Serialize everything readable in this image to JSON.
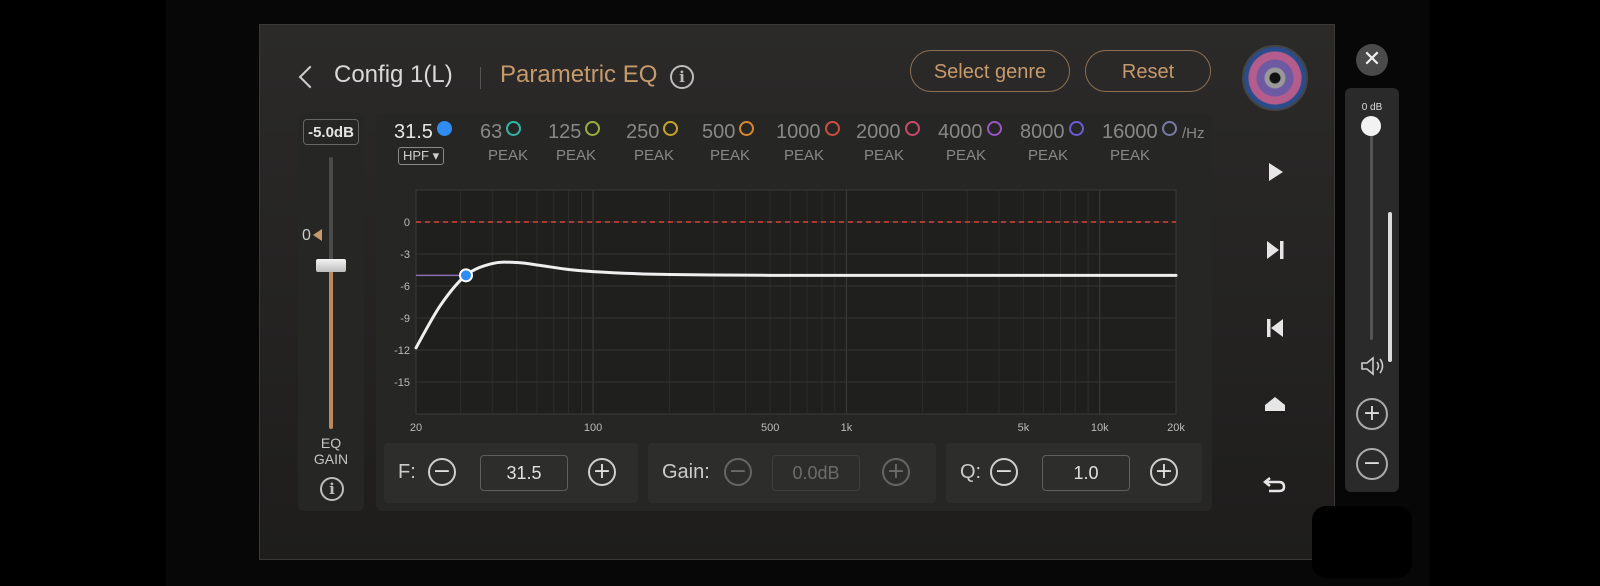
{
  "header": {
    "config_title": "Config 1(L)",
    "eq_title": "Parametric EQ",
    "select_genre": "Select genre",
    "reset": "Reset"
  },
  "eq_gain": {
    "value_label": "-5.0dB",
    "zero_label": "0",
    "label_line1": "EQ",
    "label_line2": "GAIN",
    "level_db": -5.0
  },
  "bands": [
    {
      "freq": "31.5",
      "type": "HPF ▾",
      "color": "#2e8cf2",
      "selected": true
    },
    {
      "freq": "63",
      "type": "PEAK",
      "color": "#2fb7a6"
    },
    {
      "freq": "125",
      "type": "PEAK",
      "color": "#9cae3f"
    },
    {
      "freq": "250",
      "type": "PEAK",
      "color": "#c9a323"
    },
    {
      "freq": "500",
      "type": "PEAK",
      "color": "#d8872d"
    },
    {
      "freq": "1000",
      "type": "PEAK",
      "color": "#c95040"
    },
    {
      "freq": "2000",
      "type": "PEAK",
      "color": "#c84b6a"
    },
    {
      "freq": "4000",
      "type": "PEAK",
      "color": "#9b55c2"
    },
    {
      "freq": "8000",
      "type": "PEAK",
      "color": "#6a5bd8"
    },
    {
      "freq": "16000",
      "type": "PEAK",
      "color": "#7a7aa8"
    }
  ],
  "hz_unit": "/Hz",
  "chart_data": {
    "type": "line",
    "x_scale": "log",
    "xlim": [
      20,
      20000
    ],
    "ylim": [
      -18,
      3
    ],
    "x_ticks": [
      20,
      100,
      500,
      1000,
      5000,
      10000,
      20000
    ],
    "x_tick_labels": [
      "20",
      "100",
      "500",
      "1k",
      "5k",
      "10k",
      "20k"
    ],
    "y_ticks": [
      0,
      -3,
      -6,
      -9,
      -12,
      -15
    ],
    "y_tick_labels": [
      "0",
      "-3",
      "-6",
      "-9",
      "-12",
      "-15"
    ],
    "reference_line_db": 0,
    "gain_line_db": -5.0,
    "series": [
      {
        "x": [
          20,
          25,
          31.5,
          40,
          50,
          63,
          80,
          100,
          150,
          200,
          300,
          500,
          1000,
          2000,
          5000,
          10000,
          20000
        ],
        "y": [
          -11.8,
          -7.8,
          -5.0,
          -3.9,
          -3.8,
          -4.1,
          -4.45,
          -4.65,
          -4.85,
          -4.92,
          -4.97,
          -5.0,
          -5.0,
          -5.0,
          -5.0,
          -5.0,
          -5.0
        ]
      }
    ],
    "control_point": {
      "x": 31.5,
      "y": -5.0
    }
  },
  "controls": {
    "f_label": "F:",
    "f_value": "31.5",
    "gain_label": "Gain:",
    "gain_value": "0.0dB",
    "q_label": "Q:",
    "q_value": "1.0",
    "minus": "−",
    "plus": "+"
  },
  "volume": {
    "label": "0 dB",
    "plus": "+",
    "minus": "−",
    "close": "✕"
  }
}
